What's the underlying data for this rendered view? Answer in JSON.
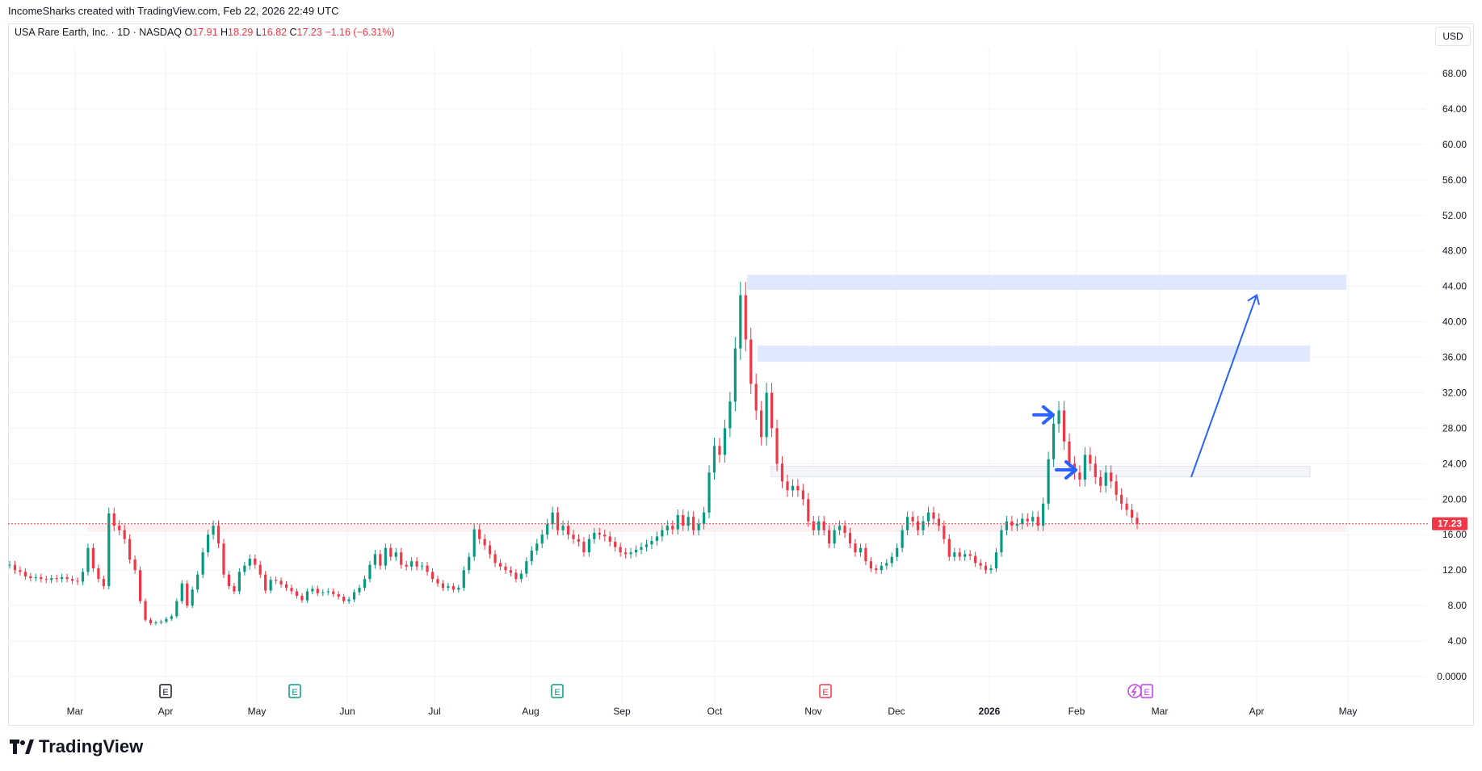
{
  "header": {
    "attribution": "IncomeSharks created with TradingView.com, Feb 22, 2026 22:49 UTC"
  },
  "legend": {
    "symbol": "USA Rare Earth, Inc. · 1D · NASDAQ",
    "open_label": "O",
    "open": "17.91",
    "high_label": "H",
    "high": "18.29",
    "low_label": "L",
    "low": "16.82",
    "close_label": "C",
    "close": "17.23",
    "change": "−1.16 (−6.31%)"
  },
  "toolbar": {
    "currency": "USD"
  },
  "footer": {
    "brand": "TradingView"
  },
  "colors": {
    "up": "#089981",
    "down": "#f23645",
    "grid": "#f0f3fa",
    "zone": "#dbe6fc",
    "arrow": "#2962ff",
    "last_price": "#f23645"
  },
  "chart_data": {
    "type": "candlestick",
    "y_axis": {
      "min": 0,
      "max": 70,
      "ticks": [
        "0.0000",
        "4.00",
        "8.00",
        "12.00",
        "16.00",
        "20.00",
        "24.00",
        "28.00",
        "32.00",
        "36.00",
        "40.00",
        "44.00",
        "48.00",
        "52.00",
        "56.00",
        "60.00",
        "64.00",
        "68.00"
      ]
    },
    "x_axis": {
      "ticks": [
        "Mar",
        "Apr",
        "May",
        "Jun",
        "Jul",
        "Aug",
        "Sep",
        "Oct",
        "Nov",
        "Dec",
        "2026",
        "Feb",
        "Mar",
        "Apr",
        "May"
      ]
    },
    "last_price": {
      "label": "17.23",
      "value": 17.23
    },
    "price_series_close": [
      12.6,
      12.0,
      11.8,
      11.3,
      11.1,
      11.2,
      11.0,
      10.9,
      11.1,
      11.0,
      11.2,
      11.0,
      10.8,
      10.7,
      11.8,
      14.5,
      12.2,
      11.0,
      10.2,
      18.4,
      17.0,
      16.5,
      15.5,
      13.2,
      12.0,
      8.5,
      6.4,
      6.0,
      6.1,
      6.2,
      6.5,
      6.8,
      8.5,
      10.5,
      8.0,
      9.8,
      11.5,
      14.0,
      16.0,
      17.0,
      15.0,
      11.5,
      10.2,
      9.6,
      11.8,
      12.5,
      13.3,
      12.6,
      11.5,
      9.7,
      10.9,
      10.8,
      10.4,
      10.0,
      9.6,
      9.1,
      8.6,
      9.6,
      9.9,
      9.4,
      9.5,
      9.6,
      9.3,
      9.0,
      8.5,
      8.7,
      9.5,
      10.0,
      11.0,
      12.6,
      13.8,
      12.5,
      14.5,
      13.5,
      14.0,
      12.6,
      12.4,
      13.0,
      12.4,
      12.5,
      11.8,
      11.0,
      10.5,
      10.0,
      10.2,
      9.8,
      10.0,
      12.0,
      13.5,
      16.6,
      15.5,
      14.8,
      13.8,
      12.8,
      12.4,
      12.0,
      11.7,
      11.0,
      11.6,
      13.0,
      14.2,
      15.0,
      16.0,
      17.2,
      18.5,
      16.5,
      17.0,
      16.0,
      15.5,
      15.2,
      14.0,
      15.5,
      16.2,
      16.0,
      15.8,
      15.2,
      14.6,
      14.0,
      13.8,
      14.0,
      14.3,
      14.6,
      14.9,
      15.3,
      15.8,
      16.5,
      17.0,
      16.6,
      18.2,
      17.0,
      18.0,
      16.5,
      17.2,
      18.5,
      23.0,
      26.0,
      25.0,
      28.0,
      31.0,
      37.0,
      43.0,
      38.0,
      33.0,
      30.0,
      27.0,
      32.0,
      28.0,
      24.0,
      22.0,
      21.0,
      21.5,
      21.0,
      20.0,
      17.5,
      16.5,
      17.5,
      16.5,
      15.0,
      16.5,
      17.0,
      16.2,
      15.0,
      14.0,
      14.5,
      13.0,
      12.2,
      12.0,
      12.5,
      12.8,
      13.5,
      14.5,
      16.5,
      18.0,
      17.5,
      16.5,
      17.5,
      18.5,
      17.8,
      17.0,
      15.5,
      13.5,
      14.0,
      13.5,
      13.8,
      13.6,
      12.8,
      12.5,
      12.0,
      12.2,
      14.0,
      16.5,
      17.5,
      17.0,
      17.2,
      17.8,
      17.5,
      18.0,
      17.0,
      19.5,
      24.5,
      28.5,
      30.0,
      26.5,
      24.0,
      23.0,
      22.2,
      25.0,
      24.0,
      22.5,
      21.5,
      23.0,
      22.0,
      20.5,
      19.5,
      18.8,
      17.9,
      17.23
    ],
    "zones": [
      {
        "y_bottom": 43.6,
        "y_top": 45.3
      },
      {
        "y_bottom": 35.5,
        "y_top": 37.3
      },
      {
        "y_bottom": 22.5,
        "y_top": 23.7
      },
      {
        "y_bottom": 16.3,
        "y_top": 17.2
      }
    ],
    "annotations": {
      "arrow_forecast": {
        "from_value": 22.5,
        "to_value": 43.0
      },
      "event_markers": [
        "E",
        "E",
        "E",
        "E",
        "E"
      ]
    }
  }
}
